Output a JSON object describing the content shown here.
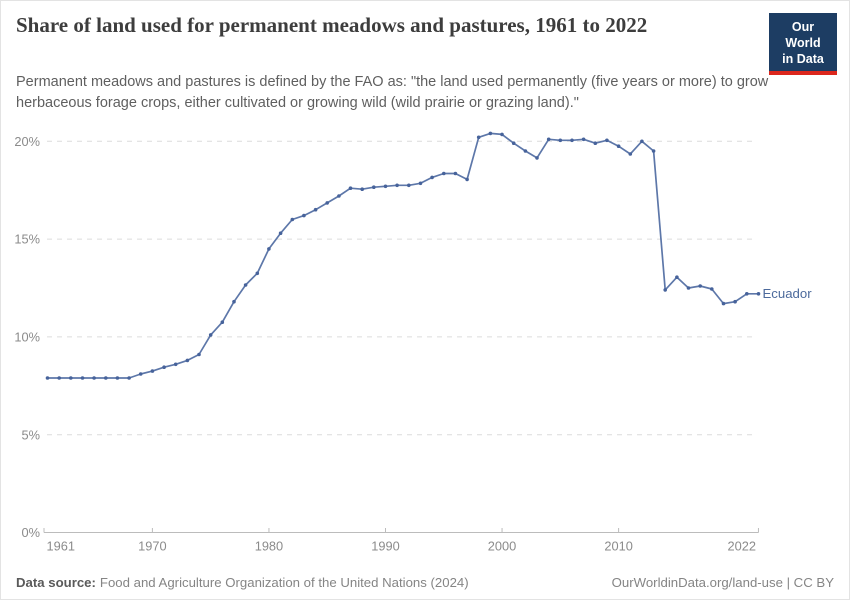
{
  "header": {
    "title": "Share of land used for permanent meadows and pastures, 1961 to 2022",
    "subtitle": "Permanent meadows and pastures is defined by the FAO as: \"the land used permanently (five years or more) to grow herbaceous forage crops, either cultivated or growing wild (wild prairie or grazing land).\"",
    "logo": {
      "line1": "Our World",
      "line2": "in Data",
      "bg_color": "#1d3d63",
      "accent_color": "#dc271d"
    }
  },
  "chart_data": {
    "type": "line",
    "title": "Share of land used for permanent meadows and pastures, 1961 to 2022",
    "x": [
      1961,
      1962,
      1963,
      1964,
      1965,
      1966,
      1967,
      1968,
      1969,
      1970,
      1971,
      1972,
      1973,
      1974,
      1975,
      1976,
      1977,
      1978,
      1979,
      1980,
      1981,
      1982,
      1983,
      1984,
      1985,
      1986,
      1987,
      1988,
      1989,
      1990,
      1991,
      1992,
      1993,
      1994,
      1995,
      1996,
      1997,
      1998,
      1999,
      2000,
      2001,
      2002,
      2003,
      2004,
      2005,
      2006,
      2007,
      2008,
      2009,
      2010,
      2011,
      2012,
      2013,
      2014,
      2015,
      2016,
      2017,
      2018,
      2019,
      2020,
      2021,
      2022
    ],
    "series": [
      {
        "name": "Ecuador",
        "color": "#4c6a9c",
        "values": [
          7.9,
          7.9,
          7.9,
          7.9,
          7.9,
          7.9,
          7.9,
          7.9,
          8.1,
          8.25,
          8.45,
          8.6,
          8.8,
          9.1,
          10.1,
          10.75,
          11.8,
          12.65,
          13.25,
          14.5,
          15.3,
          16.0,
          16.2,
          16.5,
          16.85,
          17.2,
          17.6,
          17.55,
          17.65,
          17.7,
          17.75,
          17.75,
          17.85,
          18.15,
          18.35,
          18.35,
          18.05,
          20.2,
          20.4,
          20.35,
          19.9,
          19.5,
          19.15,
          20.1,
          20.05,
          20.05,
          20.1,
          19.9,
          20.05,
          19.75,
          19.35,
          20.0,
          19.5,
          12.4,
          13.05,
          12.5,
          12.6,
          12.45,
          11.7,
          11.8,
          12.2,
          12.2
        ]
      }
    ],
    "xlabel": "",
    "ylabel": "",
    "ylim": [
      0,
      20.5
    ],
    "xlim": [
      1961,
      2022
    ],
    "yticks": [
      0,
      5,
      10,
      15,
      20
    ],
    "ytick_labels": [
      "0%",
      "5%",
      "10%",
      "15%",
      "20%"
    ],
    "xticks": [
      1961,
      1970,
      1980,
      1990,
      2000,
      2010,
      2022
    ],
    "grid": "horizontal-dashed",
    "legend": "end-of-line-label",
    "line_color": "#5d77a9",
    "marker_color": "#47639b",
    "axis_color": "#bcbcbc",
    "grid_color": "#dcdcdc",
    "tick_label_color": "#8b8b8b"
  },
  "footer": {
    "source_label": "Data source:",
    "source_text": "Food and Agriculture Organization of the United Nations (2024)",
    "attribution": "OurWorldinData.org/land-use | CC BY"
  }
}
